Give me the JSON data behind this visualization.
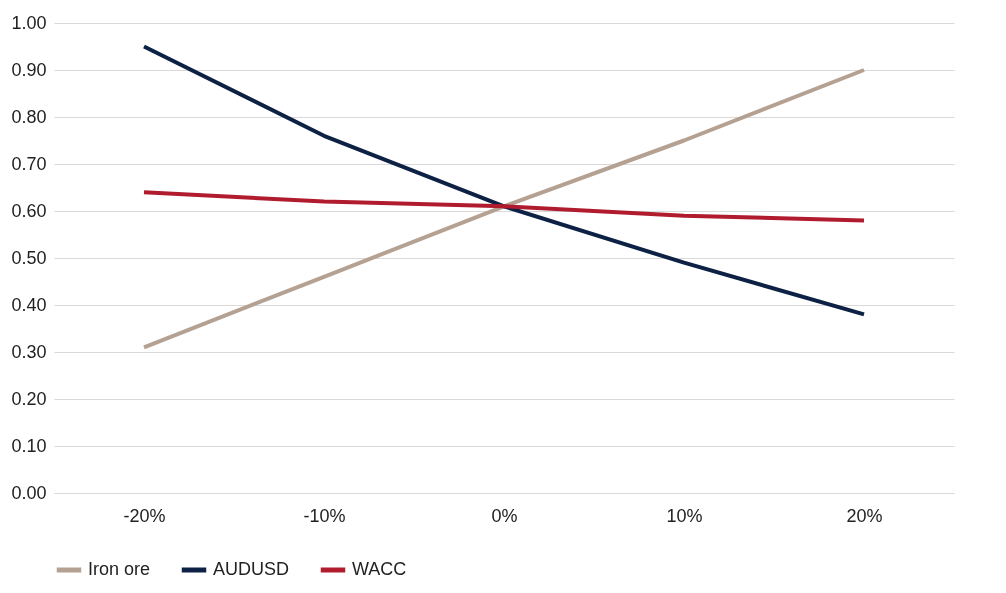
{
  "chart_data": {
    "type": "line",
    "categories": [
      "-20%",
      "-10%",
      "0%",
      "10%",
      "20%"
    ],
    "series": [
      {
        "name": "Iron ore",
        "color": "#b5a191",
        "values": [
          0.31,
          0.46,
          0.61,
          0.75,
          0.9
        ]
      },
      {
        "name": "AUDUSD",
        "color": "#0d2145",
        "values": [
          0.95,
          0.76,
          0.61,
          0.49,
          0.38
        ]
      },
      {
        "name": "WACC",
        "color": "#b01c2e",
        "values": [
          0.64,
          0.62,
          0.61,
          0.59,
          0.58
        ]
      }
    ],
    "ylim": [
      0,
      1
    ],
    "yticks": [
      {
        "value": 0,
        "label": "0.00"
      },
      {
        "value": 0.1,
        "label": "0.10"
      },
      {
        "value": 0.2,
        "label": "0.20"
      },
      {
        "value": 0.3,
        "label": "0.30"
      },
      {
        "value": 0.4,
        "label": "0.40"
      },
      {
        "value": 0.5,
        "label": "0.50"
      },
      {
        "value": 0.6,
        "label": "0.60"
      },
      {
        "value": 0.7,
        "label": "0.70"
      },
      {
        "value": 0.8,
        "label": "0.80"
      },
      {
        "value": 0.9,
        "label": "0.90"
      },
      {
        "value": 1,
        "label": "1.00"
      }
    ],
    "grid": "y",
    "legend": "bottom",
    "marker": "none",
    "line_style": "solid"
  }
}
